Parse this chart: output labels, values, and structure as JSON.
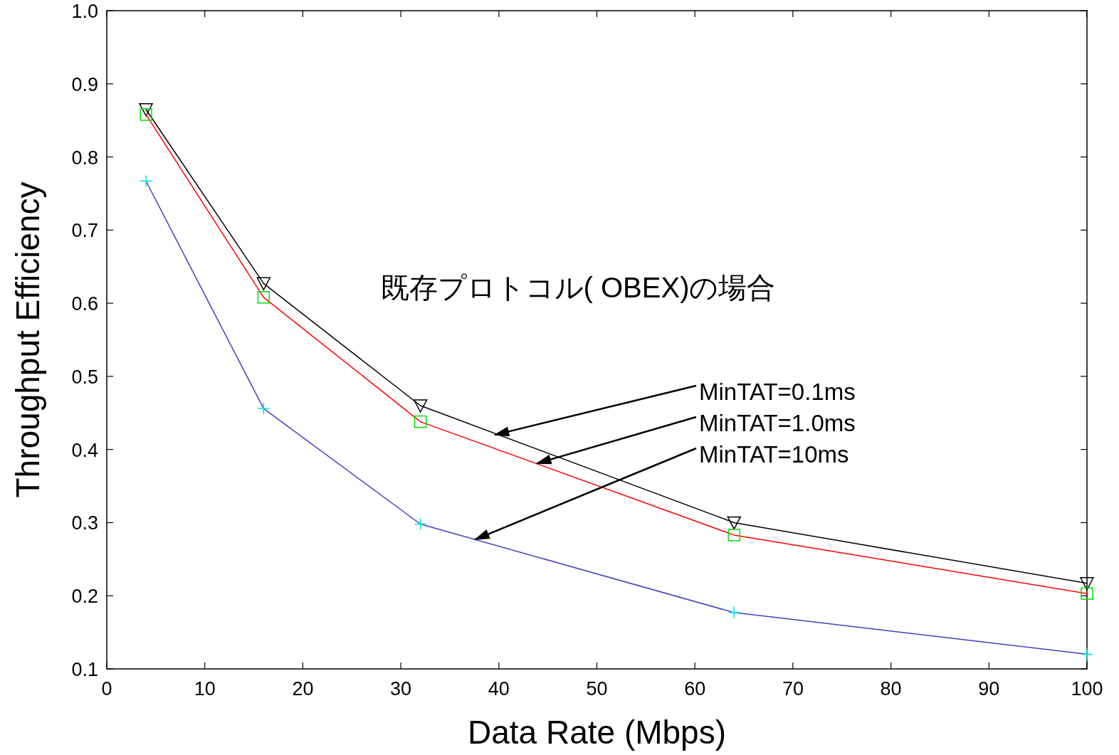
{
  "chart_data": {
    "type": "line",
    "title": "既存プロトコル( OBEX)の場合",
    "xlabel": "Data Rate (Mbps)",
    "ylabel": "Throughput Efficiency",
    "x": [
      4,
      16,
      32,
      64,
      100
    ],
    "annotations": [
      {
        "text": "MinTAT=0.1ms",
        "x": 39.6,
        "y": 0.42
      },
      {
        "text": "MinTAT=1.0ms",
        "x": 43.9,
        "y": 0.381
      },
      {
        "text": "MinTAT=10ms",
        "x": 37.6,
        "y": 0.277
      }
    ],
    "series": [
      {
        "color": "#000000",
        "colors": [
          "#000000",
          "#000000",
          "#000000",
          "#000000",
          "#000000"
        ],
        "marker": "triangle",
        "values": [
          0.865,
          0.627,
          0.46,
          0.3,
          0.217
        ]
      },
      {
        "color": "#ff0000",
        "colors": [
          "#00e000",
          "#00e000",
          "#00e000",
          "#00e000",
          "#00e000"
        ],
        "marker": "square",
        "values": [
          0.858,
          0.608,
          0.438,
          0.283,
          0.203
        ]
      },
      {
        "color": "#4040c0",
        "colors": [
          "#00e0e0",
          "#00e0e0",
          "#00e0e0",
          "#00e0e0",
          "#00e0e0"
        ],
        "marker": "cross",
        "values": [
          0.767,
          0.456,
          0.298,
          0.177,
          0.12
        ]
      }
    ],
    "xlim": [
      0,
      100
    ],
    "ylim": [
      0.1,
      1.0
    ],
    "xticks": [
      0,
      10,
      20,
      30,
      40,
      50,
      60,
      70,
      80,
      90,
      100
    ],
    "yticks": [
      0.1,
      0.2,
      0.3,
      0.4,
      0.5,
      0.6,
      0.7,
      0.8,
      0.9,
      {
        "value": 1.0,
        "label": "1.0"
      }
    ]
  }
}
